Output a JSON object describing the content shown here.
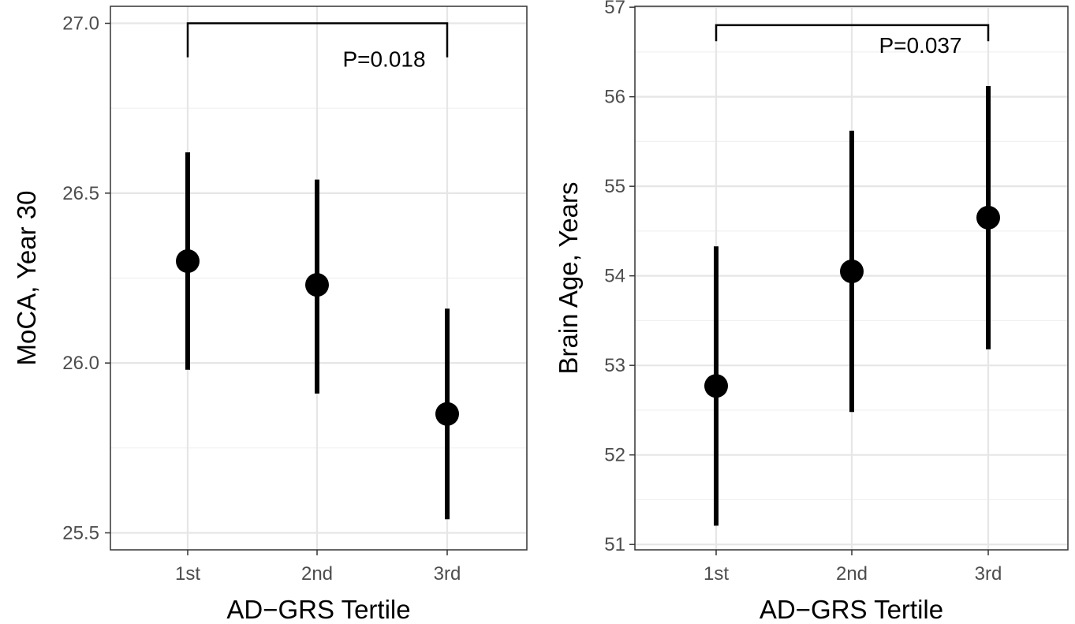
{
  "chart_data": [
    {
      "type": "scatter",
      "style": "point-with-error-bars",
      "categories": [
        "1st",
        "2nd",
        "3rd"
      ],
      "series": [
        {
          "values": [
            26.3,
            26.23,
            25.85
          ],
          "lower": [
            25.98,
            25.91,
            25.54
          ],
          "upper": [
            26.62,
            26.54,
            26.16
          ]
        }
      ],
      "xlabel": "AD−GRS Tertile",
      "ylabel": "MoCA, Year 30",
      "ylim": [
        25.45,
        27.05
      ],
      "yticks": [
        "25.5",
        "26.0",
        "26.5",
        "27.0"
      ],
      "ytick_values": [
        25.5,
        26.0,
        26.5,
        27.0
      ],
      "grid": true,
      "annotation": {
        "text": "P=0.018",
        "from_category": "1st",
        "to_category": "3rd",
        "bracket_y": 27.0,
        "bracket_drop_to": 26.9
      }
    },
    {
      "type": "scatter",
      "style": "point-with-error-bars",
      "categories": [
        "1st",
        "2nd",
        "3rd"
      ],
      "series": [
        {
          "values": [
            52.77,
            54.05,
            54.65
          ],
          "lower": [
            51.21,
            52.48,
            53.18
          ],
          "upper": [
            54.33,
            55.62,
            56.12
          ]
        }
      ],
      "xlabel": "AD−GRS Tertile",
      "ylabel": "Brain Age, Years",
      "ylim": [
        50.94,
        57.01
      ],
      "yticks": [
        "51",
        "52",
        "53",
        "54",
        "55",
        "56",
        "57"
      ],
      "ytick_values": [
        51,
        52,
        53,
        54,
        55,
        56,
        57
      ],
      "grid": true,
      "annotation": {
        "text": "P=0.037",
        "from_category": "1st",
        "to_category": "3rd",
        "bracket_y": 56.8,
        "bracket_drop_to": 56.62
      }
    }
  ]
}
